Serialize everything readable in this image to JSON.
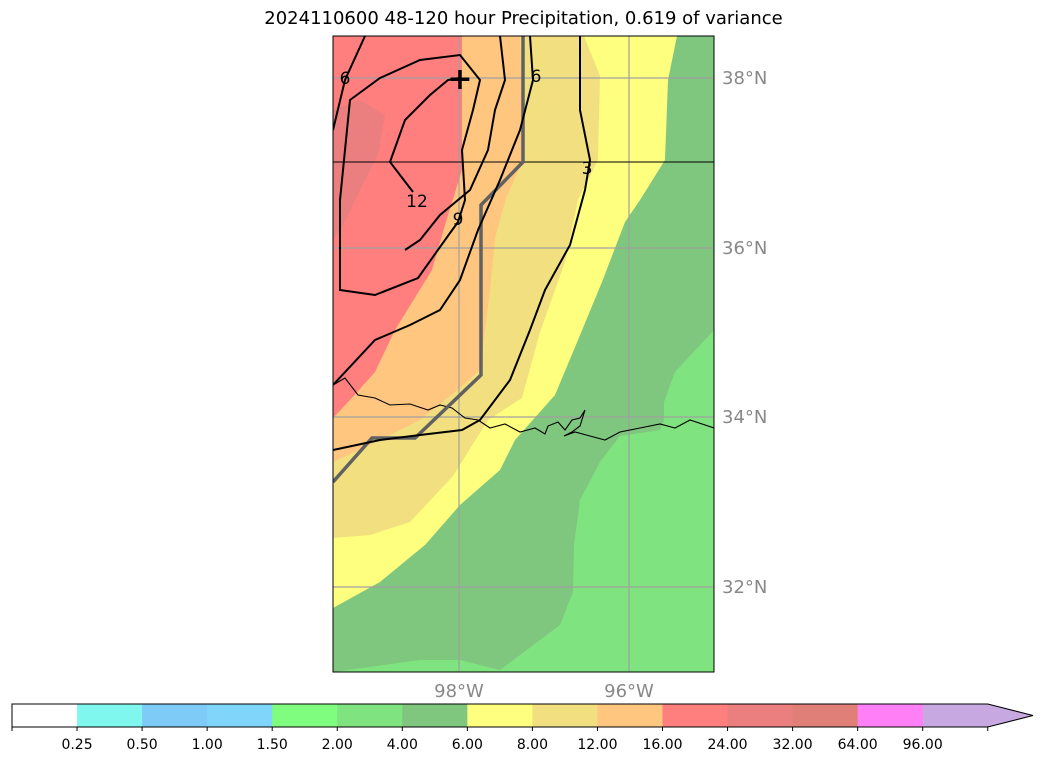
{
  "title": "2024110600 48-120 hour Precipitation, 0.619 of variance",
  "map": {
    "lat_labels": [
      "38°N",
      "36°N",
      "34°N",
      "32°N"
    ],
    "lon_labels": [
      "98°W",
      "96°W"
    ],
    "contour_labels": [
      "6",
      "12",
      "9",
      "3",
      "6"
    ],
    "marker": "+"
  },
  "colorbar": {
    "boundaries": [
      "0.25",
      "0.50",
      "1.00",
      "1.50",
      "2.00",
      "4.00",
      "6.00",
      "8.00",
      "12.00",
      "16.00",
      "24.00",
      "32.00",
      "64.00",
      "96.00"
    ],
    "colors": [
      "#ffffff",
      "#7ff7ef",
      "#7fcbf7",
      "#7fd6fa",
      "#7ffd7f",
      "#7fe47f",
      "#7fc67f",
      "#ffff7f",
      "#f2df7f",
      "#ffc67f",
      "#ff7f7f",
      "#eb7f7f",
      "#df7f78",
      "#ff7ff7",
      "#c8a8e0"
    ],
    "extend": "max"
  },
  "legend_colors": {
    "green_4": "#7fe47f",
    "green_6": "#7fc67f",
    "yellow_8": "#ffff7f",
    "khaki_12": "#f2df7f",
    "orange_16": "#ffc67f",
    "red_24": "#ff7f7f",
    "red_32": "#eb7f7f"
  }
}
